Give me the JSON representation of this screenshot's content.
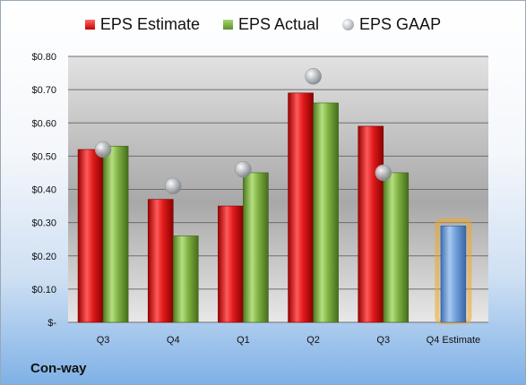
{
  "legend": [
    {
      "label": "EPS Estimate",
      "color": "#d61f1f"
    },
    {
      "label": "EPS Actual",
      "color": "#78ad3f"
    },
    {
      "label": "EPS GAAP",
      "color": "#a0a6ad"
    }
  ],
  "company": "Con-way",
  "chart_data": {
    "type": "bar",
    "categories": [
      "Q3",
      "Q4",
      "Q1",
      "Q2",
      "Q3",
      "Q4 Estimate"
    ],
    "series": [
      {
        "name": "EPS Estimate",
        "values": [
          0.52,
          0.37,
          0.35,
          0.69,
          0.59,
          null
        ],
        "color": "#d61f1f"
      },
      {
        "name": "EPS Actual",
        "values": [
          0.53,
          0.26,
          0.45,
          0.66,
          0.45,
          null
        ],
        "color": "#78ad3f"
      },
      {
        "name": "EPS GAAP",
        "values": [
          0.52,
          0.41,
          0.46,
          0.74,
          0.45,
          null
        ],
        "color": "#a0a6ad",
        "marker": "sphere"
      },
      {
        "name": "",
        "values": [
          null,
          null,
          null,
          null,
          null,
          0.29
        ],
        "color": "#6fa0dc",
        "highlight": "#f5a623"
      }
    ],
    "ylim": [
      0,
      0.8
    ],
    "yticks": [
      0,
      0.1,
      0.2,
      0.3,
      0.4,
      0.5,
      0.6,
      0.7,
      0.8
    ],
    "ytick_labels": [
      "$-",
      "$0.10",
      "$0.20",
      "$0.30",
      "$0.40",
      "$0.50",
      "$0.60",
      "$0.70",
      "$0.80"
    ],
    "grid": true
  }
}
